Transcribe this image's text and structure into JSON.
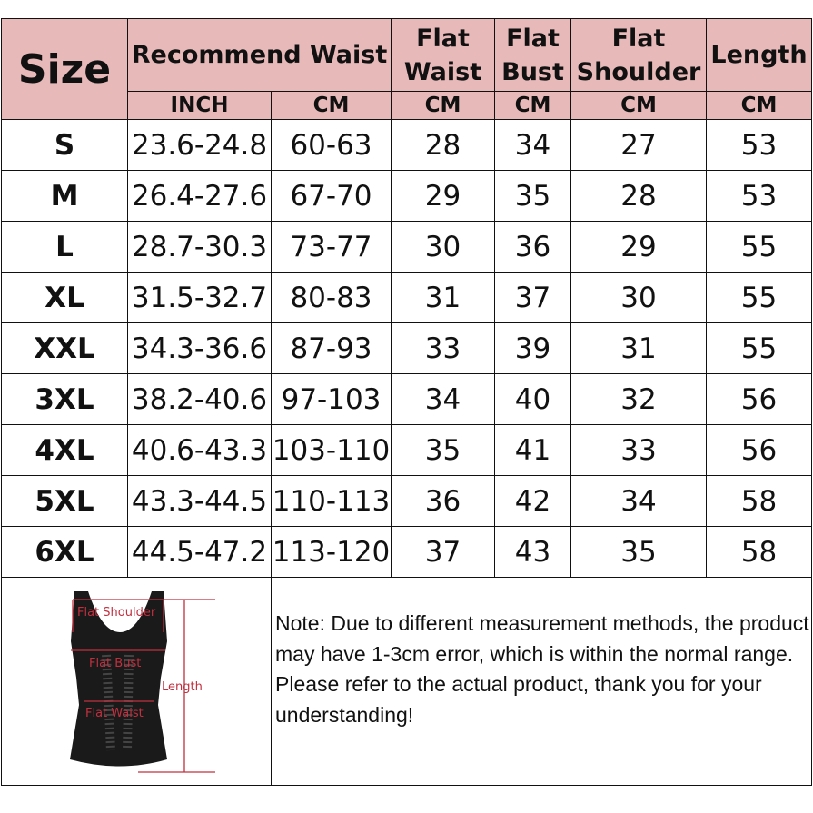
{
  "headers": {
    "size": "Size",
    "recommend_waist": "Recommend Waist",
    "flat_waist": "Flat Waist",
    "flat_bust": "Flat Bust",
    "flat_shoulder": "Flat Shoulder",
    "length": "Length",
    "units": [
      "INCH",
      "CM",
      "CM",
      "CM",
      "CM",
      "CM"
    ]
  },
  "rows": [
    [
      "S",
      "23.6-24.8",
      "60-63",
      "28",
      "34",
      "27",
      "53"
    ],
    [
      "M",
      "26.4-27.6",
      "67-70",
      "29",
      "35",
      "28",
      "53"
    ],
    [
      "L",
      "28.7-30.3",
      "73-77",
      "30",
      "36",
      "29",
      "55"
    ],
    [
      "XL",
      "31.5-32.7",
      "80-83",
      "31",
      "37",
      "30",
      "55"
    ],
    [
      "XXL",
      "34.3-36.6",
      "87-93",
      "33",
      "39",
      "31",
      "55"
    ],
    [
      "3XL",
      "38.2-40.6",
      "97-103",
      "34",
      "40",
      "32",
      "56"
    ],
    [
      "4XL",
      "40.6-43.3",
      "103-110",
      "35",
      "41",
      "33",
      "56"
    ],
    [
      "5XL",
      "43.3-44.5",
      "110-113",
      "36",
      "42",
      "34",
      "58"
    ],
    [
      "6XL",
      "44.5-47.2",
      "113-120",
      "37",
      "43",
      "35",
      "58"
    ]
  ],
  "figure": {
    "labels": {
      "shoulder": "Flat Shoulder",
      "bust": "Flat Bust",
      "waist": "Flat Waist",
      "length": "Length"
    }
  },
  "note": "Note: Due to different measurement methods, the product may have 1-3cm error, which is within the normal range. Please refer to the actual product, thank you for your understanding!",
  "colors": {
    "header": "#e8b9b9",
    "measure": "#c0303f"
  }
}
